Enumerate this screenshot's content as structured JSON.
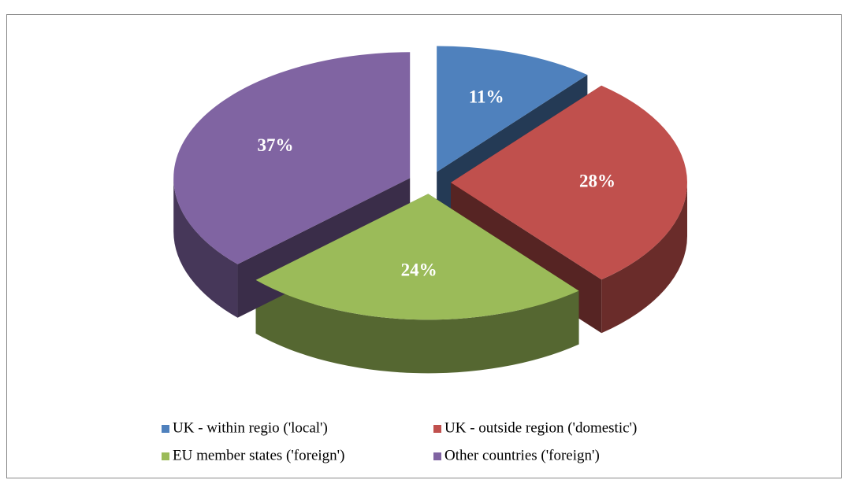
{
  "chart_data": {
    "type": "pie",
    "categories": [
      "UK - within regio ('local')",
      "UK - outside region ('domestic')",
      "EU member states ('foreign')",
      "Other countries ('foreign')"
    ],
    "values": [
      11,
      28,
      24,
      37
    ],
    "value_labels": [
      "11%",
      "28%",
      "24%",
      "37%"
    ],
    "colors": [
      "#4f81bd",
      "#c0504d",
      "#9bbb59",
      "#8064a2"
    ],
    "legend": "bottom"
  }
}
